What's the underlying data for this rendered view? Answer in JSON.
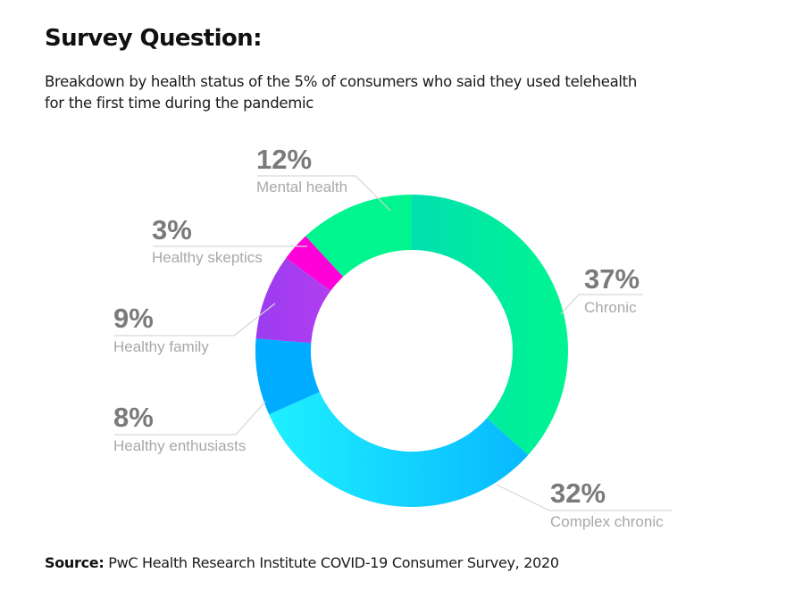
{
  "header": {
    "title": "Survey Question:",
    "subtitle": "Breakdown by health status of the 5% of consumers who said they used telehealth for the first time during the pandemic"
  },
  "footer": {
    "source_label": "Source:",
    "source_text": "PwC Health Research Institute COVID-19 Consumer Survey, 2020"
  },
  "chart_data": {
    "type": "pie",
    "variant": "donut",
    "title": "Survey Question:",
    "subtitle": "Breakdown by health status of the 5% of consumers who said they used telehealth for the first time during the pandemic",
    "unit": "%",
    "start": "12 o'clock",
    "direction": "clockwise",
    "slices": [
      {
        "key": "chronic",
        "label": "Chronic",
        "value": 37,
        "value_label": "37%",
        "color_start": "#00e0b0",
        "color_end": "#00f590"
      },
      {
        "key": "complex-chronic",
        "label": "Complex chronic",
        "value": 32,
        "value_label": "32%",
        "color_start": "#1ef0ff",
        "color_end": "#08b8ff"
      },
      {
        "key": "healthy-enthusiasts",
        "label": "Healthy enthusiasts",
        "value": 8,
        "value_label": "8%",
        "color_start": "#00acff",
        "color_end": "#00acff"
      },
      {
        "key": "healthy-family",
        "label": "Healthy family",
        "value": 9,
        "value_label": "9%",
        "color_start": "#9b3cf0",
        "color_end": "#b03ef0"
      },
      {
        "key": "healthy-skeptics",
        "label": "Healthy skeptics",
        "value": 3,
        "value_label": "3%",
        "color_start": "#ff00d8",
        "color_end": "#ff00d8"
      },
      {
        "key": "mental-health",
        "label": "Mental health",
        "value": 12,
        "value_label": "12%",
        "color_start": "#00f58e",
        "color_end": "#00f58e"
      }
    ],
    "legend": "none (direct labels with leader lines)"
  }
}
